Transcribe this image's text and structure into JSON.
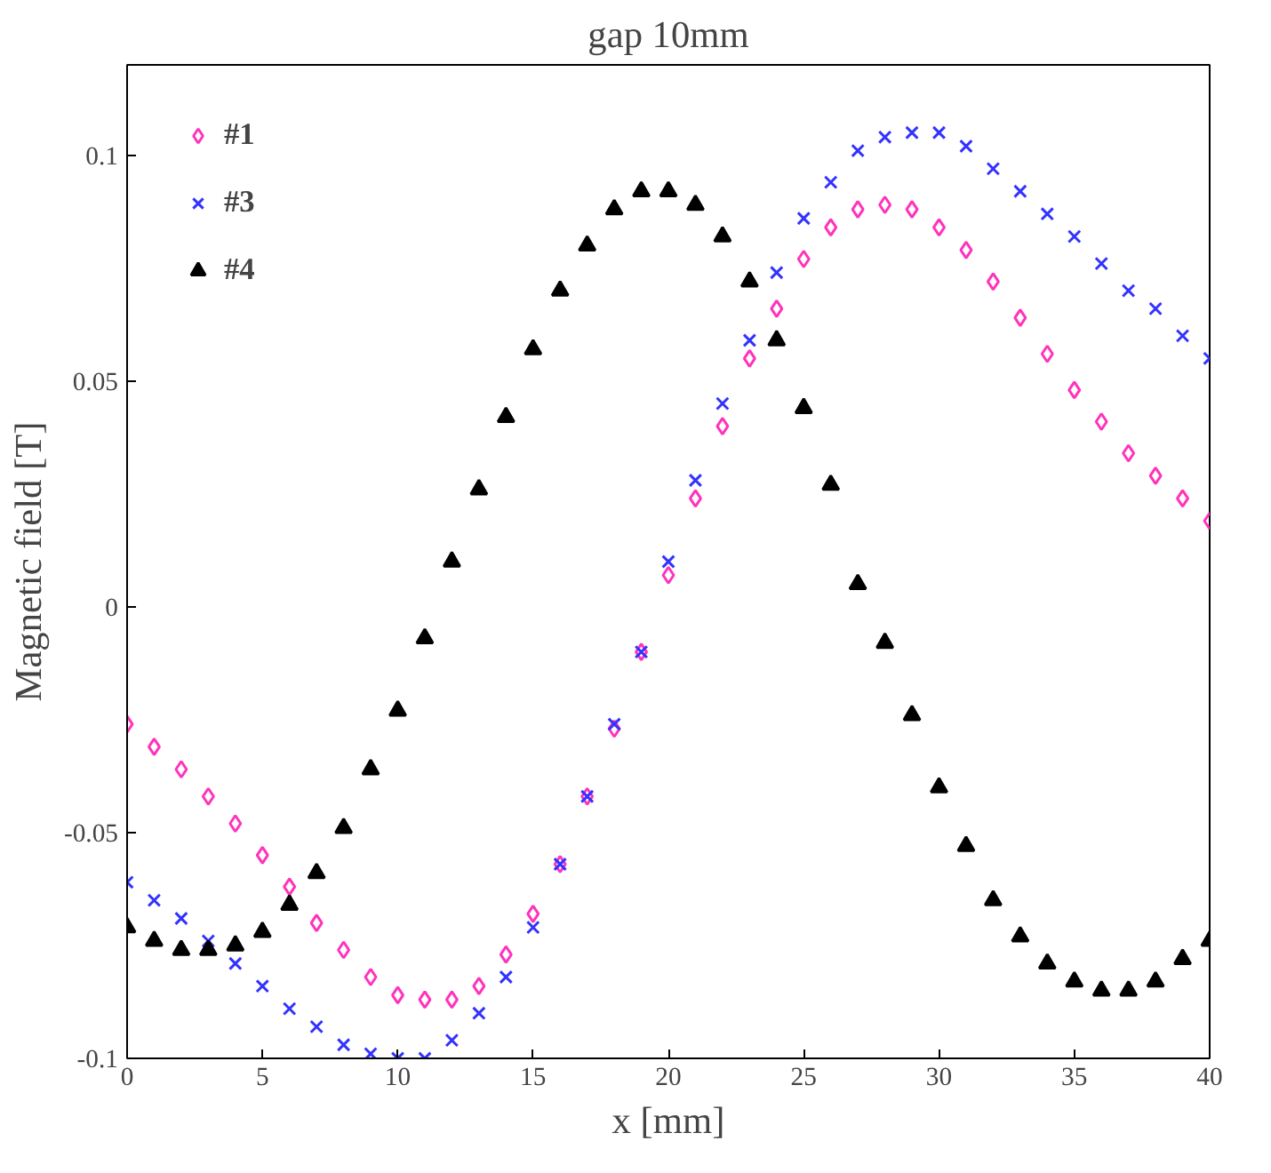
{
  "chart_data": {
    "type": "scatter",
    "title": "gap 10mm",
    "xlabel": "x [mm]",
    "ylabel": "Magnetic field [T]",
    "x": [
      0,
      1,
      2,
      3,
      4,
      5,
      6,
      7,
      8,
      9,
      10,
      11,
      12,
      13,
      14,
      15,
      16,
      17,
      18,
      19,
      20,
      21,
      22,
      23,
      24,
      25,
      26,
      27,
      28,
      29,
      30,
      31,
      32,
      33,
      34,
      35,
      36,
      37,
      38,
      39,
      40
    ],
    "series": [
      {
        "name": "#1",
        "color": "#ff33bb",
        "marker": "diamond",
        "values": [
          -0.026,
          -0.031,
          -0.036,
          -0.042,
          -0.048,
          -0.055,
          -0.062,
          -0.07,
          -0.076,
          -0.082,
          -0.086,
          -0.087,
          -0.087,
          -0.084,
          -0.077,
          -0.068,
          -0.057,
          -0.042,
          -0.027,
          -0.01,
          0.007,
          0.024,
          0.04,
          0.055,
          0.066,
          0.077,
          0.084,
          0.088,
          0.089,
          0.088,
          0.084,
          0.079,
          0.072,
          0.064,
          0.056,
          0.048,
          0.041,
          0.034,
          0.029,
          0.024,
          0.019
        ]
      },
      {
        "name": "#3",
        "color": "#3333ff",
        "marker": "cross",
        "values": [
          -0.061,
          -0.065,
          -0.069,
          -0.074,
          -0.079,
          -0.084,
          -0.089,
          -0.093,
          -0.097,
          -0.099,
          -0.1,
          -0.1,
          -0.096,
          -0.09,
          -0.082,
          -0.071,
          -0.057,
          -0.042,
          -0.026,
          -0.01,
          0.01,
          0.028,
          0.045,
          0.059,
          0.074,
          0.086,
          0.094,
          0.101,
          0.104,
          0.105,
          0.105,
          0.102,
          0.097,
          0.092,
          0.087,
          0.082,
          0.076,
          0.07,
          0.066,
          0.06,
          0.055
        ]
      },
      {
        "name": "#4",
        "color": "#000000",
        "marker": "triangle",
        "values": [
          -0.071,
          -0.074,
          -0.076,
          -0.076,
          -0.075,
          -0.072,
          -0.066,
          -0.059,
          -0.049,
          -0.036,
          -0.023,
          -0.007,
          0.01,
          0.026,
          0.042,
          0.057,
          0.07,
          0.08,
          0.088,
          0.092,
          0.092,
          0.089,
          0.082,
          0.072,
          0.059,
          0.044,
          0.027,
          0.005,
          -0.008,
          -0.024,
          -0.04,
          -0.053,
          -0.065,
          -0.073,
          -0.079,
          -0.083,
          -0.085,
          -0.085,
          -0.083,
          -0.078,
          -0.074
        ]
      }
    ],
    "xlim": [
      0,
      40
    ],
    "ylim": [
      -0.1,
      0.12
    ],
    "xticks": [
      0,
      5,
      10,
      15,
      20,
      25,
      30,
      35,
      40
    ],
    "yticks": [
      {
        "value": -0.1,
        "label": "-0.1"
      },
      {
        "value": -0.05,
        "label": "-0.05"
      },
      0,
      {
        "value": 0.05,
        "label": "0.05"
      },
      {
        "value": 0.1,
        "label": "0.1"
      }
    ],
    "grid": false,
    "legend": "top left"
  }
}
